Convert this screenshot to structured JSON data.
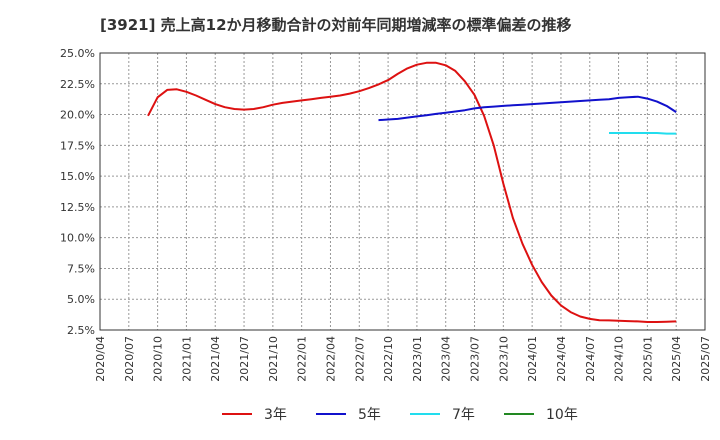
{
  "chart_data": {
    "type": "line",
    "title": "[3921]  売上高12か月移動合計の対前年同期増減率の標準偏差の推移",
    "xlabel": "",
    "ylabel": "",
    "x_ticks": [
      "2020/04",
      "2020/07",
      "2020/10",
      "2021/01",
      "2021/04",
      "2021/07",
      "2021/10",
      "2022/01",
      "2022/04",
      "2022/07",
      "2022/10",
      "2023/01",
      "2023/04",
      "2023/07",
      "2023/10",
      "2024/01",
      "2024/04",
      "2024/07",
      "2024/10",
      "2025/01",
      "2025/04",
      "2025/07"
    ],
    "y_ticks": [
      "25.0%",
      "22.5%",
      "20.0%",
      "17.5%",
      "15.0%",
      "12.5%",
      "10.0%",
      "7.5%",
      "5.0%",
      "2.5%"
    ],
    "ylim": [
      2.5,
      25.0
    ],
    "grid": true,
    "legend_position": "bottom",
    "series": [
      {
        "name": "3年",
        "color": "#dd1111",
        "points": [
          [
            "2020/09",
            19.9
          ],
          [
            "2020/10",
            21.4
          ],
          [
            "2020/11",
            22.0
          ],
          [
            "2020/12",
            22.05
          ],
          [
            "2021/01",
            21.85
          ],
          [
            "2021/02",
            21.55
          ],
          [
            "2021/03",
            21.2
          ],
          [
            "2021/04",
            20.85
          ],
          [
            "2021/05",
            20.6
          ],
          [
            "2021/06",
            20.45
          ],
          [
            "2021/07",
            20.4
          ],
          [
            "2021/08",
            20.45
          ],
          [
            "2021/09",
            20.6
          ],
          [
            "2021/10",
            20.8
          ],
          [
            "2021/11",
            20.95
          ],
          [
            "2021/12",
            21.05
          ],
          [
            "2022/01",
            21.15
          ],
          [
            "2022/02",
            21.25
          ],
          [
            "2022/03",
            21.35
          ],
          [
            "2022/04",
            21.45
          ],
          [
            "2022/05",
            21.55
          ],
          [
            "2022/06",
            21.7
          ],
          [
            "2022/07",
            21.9
          ],
          [
            "2022/08",
            22.15
          ],
          [
            "2022/09",
            22.45
          ],
          [
            "2022/10",
            22.8
          ],
          [
            "2022/11",
            23.3
          ],
          [
            "2022/12",
            23.75
          ],
          [
            "2023/01",
            24.05
          ],
          [
            "2023/02",
            24.2
          ],
          [
            "2023/03",
            24.2
          ],
          [
            "2023/04",
            24.0
          ],
          [
            "2023/05",
            23.55
          ],
          [
            "2023/06",
            22.7
          ],
          [
            "2023/07",
            21.6
          ],
          [
            "2023/08",
            19.9
          ],
          [
            "2023/09",
            17.5
          ],
          [
            "2023/10",
            14.4
          ],
          [
            "2023/11",
            11.6
          ],
          [
            "2023/12",
            9.5
          ],
          [
            "2024/01",
            7.8
          ],
          [
            "2024/02",
            6.4
          ],
          [
            "2024/03",
            5.3
          ],
          [
            "2024/04",
            4.5
          ],
          [
            "2024/05",
            3.95
          ],
          [
            "2024/06",
            3.6
          ],
          [
            "2024/07",
            3.4
          ],
          [
            "2024/08",
            3.3
          ],
          [
            "2024/09",
            3.28
          ],
          [
            "2024/10",
            3.25
          ],
          [
            "2024/11",
            3.22
          ],
          [
            "2024/12",
            3.2
          ],
          [
            "2025/01",
            3.15
          ],
          [
            "2025/02",
            3.15
          ],
          [
            "2025/03",
            3.17
          ],
          [
            "2025/04",
            3.2
          ]
        ]
      },
      {
        "name": "5年",
        "color": "#1111cc",
        "points": [
          [
            "2022/09",
            19.55
          ],
          [
            "2022/10",
            19.6
          ],
          [
            "2022/11",
            19.65
          ],
          [
            "2022/12",
            19.75
          ],
          [
            "2023/01",
            19.85
          ],
          [
            "2023/02",
            19.95
          ],
          [
            "2023/03",
            20.05
          ],
          [
            "2023/04",
            20.15
          ],
          [
            "2023/05",
            20.25
          ],
          [
            "2023/06",
            20.35
          ],
          [
            "2023/07",
            20.5
          ],
          [
            "2023/08",
            20.6
          ],
          [
            "2023/09",
            20.65
          ],
          [
            "2023/10",
            20.7
          ],
          [
            "2023/11",
            20.75
          ],
          [
            "2023/12",
            20.8
          ],
          [
            "2024/01",
            20.85
          ],
          [
            "2024/02",
            20.9
          ],
          [
            "2024/03",
            20.95
          ],
          [
            "2024/04",
            21.0
          ],
          [
            "2024/05",
            21.05
          ],
          [
            "2024/06",
            21.1
          ],
          [
            "2024/07",
            21.15
          ],
          [
            "2024/08",
            21.2
          ],
          [
            "2024/09",
            21.25
          ],
          [
            "2024/10",
            21.35
          ],
          [
            "2024/11",
            21.4
          ],
          [
            "2024/12",
            21.45
          ],
          [
            "2025/01",
            21.3
          ],
          [
            "2025/02",
            21.05
          ],
          [
            "2025/03",
            20.7
          ],
          [
            "2025/04",
            20.2
          ]
        ]
      },
      {
        "name": "7年",
        "color": "#22ddee",
        "points": [
          [
            "2024/09",
            18.5
          ],
          [
            "2024/10",
            18.5
          ],
          [
            "2024/11",
            18.5
          ],
          [
            "2024/12",
            18.5
          ],
          [
            "2025/01",
            18.5
          ],
          [
            "2025/02",
            18.5
          ],
          [
            "2025/03",
            18.45
          ],
          [
            "2025/04",
            18.45
          ]
        ]
      },
      {
        "name": "10年",
        "color": "#228822",
        "points": []
      }
    ]
  }
}
